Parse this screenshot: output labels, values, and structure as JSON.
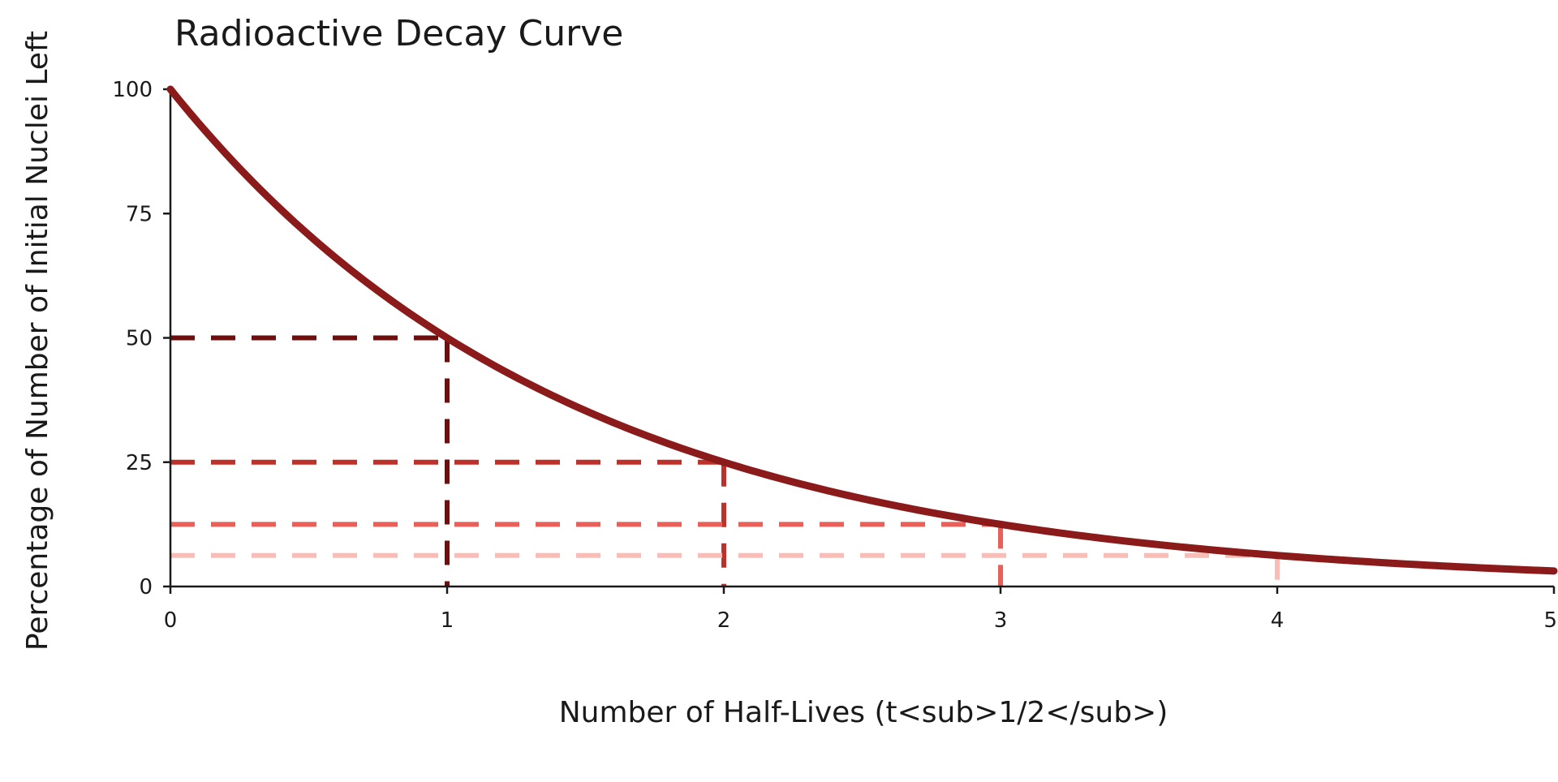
{
  "chart_data": {
    "type": "line",
    "title": "Radioactive Decay Curve",
    "xlabel": "Number of Half-Lives (t<sub>1/2</sub>)",
    "ylabel": "Percentage of Number of Initial Nuclei Left",
    "xlim": [
      0,
      5
    ],
    "ylim": [
      0,
      100
    ],
    "x_ticks": [
      0,
      1,
      2,
      3,
      4,
      5
    ],
    "y_ticks": [
      0,
      25,
      50,
      75,
      100
    ],
    "grid": false,
    "legend": "none",
    "curve": {
      "formula": "y = 100 * 0.5^x",
      "color": "#8b1a1a",
      "x": [
        0,
        0.25,
        0.5,
        0.75,
        1,
        1.25,
        1.5,
        1.75,
        2,
        2.25,
        2.5,
        2.75,
        3,
        3.25,
        3.5,
        3.75,
        4,
        4.25,
        4.5,
        4.75,
        5
      ],
      "y": [
        100,
        84.09,
        70.71,
        59.46,
        50,
        42.04,
        35.36,
        29.73,
        25,
        21.02,
        17.68,
        14.87,
        12.5,
        10.51,
        8.84,
        7.43,
        6.25,
        5.26,
        4.42,
        3.72,
        3.13
      ]
    },
    "half_life_markers": [
      {
        "x": 1,
        "y": 50,
        "color": "#6b0f0f"
      },
      {
        "x": 2,
        "y": 25,
        "color": "#c0302a"
      },
      {
        "x": 3,
        "y": 12.5,
        "color": "#e8605a"
      },
      {
        "x": 4,
        "y": 6.25,
        "color": "#f8bdb6"
      }
    ],
    "axis_color": "#1a1a1a"
  }
}
